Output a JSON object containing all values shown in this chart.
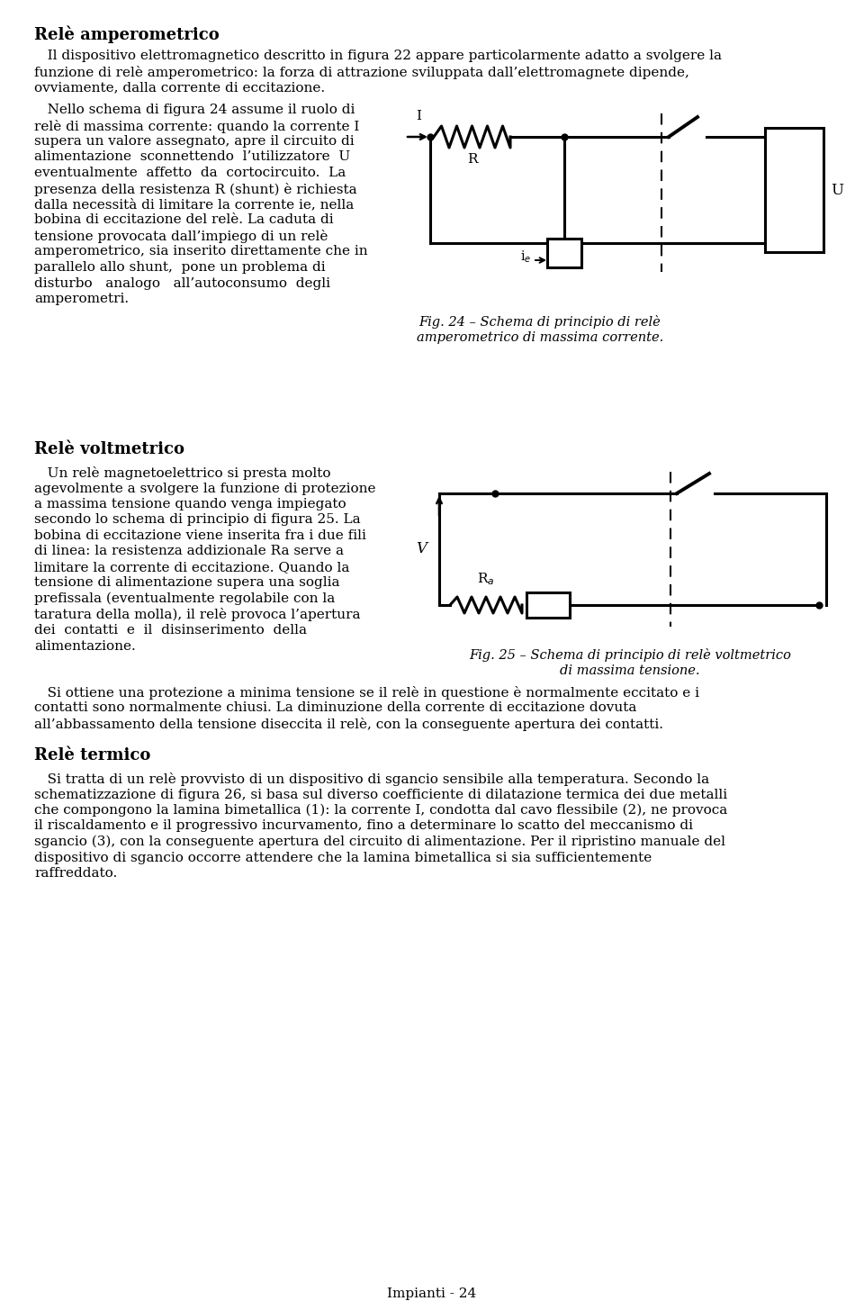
{
  "title_amp": "Relè amperometrico",
  "para1": "   Il dispositivo elettromagnetico descritto in figura 22 appare particolarmente adatto a svolgere la\nfunzione di relè amperometrico: la forza di attrazione sviluppata dall’elettromagnete dipende,\novviamente, dalla corrente di eccitazione.",
  "para2_left_lines": [
    "   Nello schema di figura 24 assume il ruolo di",
    "relè di massima corrente: quando la corrente I",
    "supera un valore assegnato, apre il circuito di",
    "alimentazione  sconnettendo  l’utilizzatore  U",
    "eventualmente  affetto  da  cortocircuito.  La",
    "presenza della resistenza R (shunt) è richiesta",
    "dalla necessità di limitare la corrente ie, nella",
    "bobina di eccitazione del relè. La caduta di",
    "tensione provocata dall’impiego di un relè",
    "amperometrico, sia inserito direttamente che in",
    "parallelo allo shunt,  pone un problema di",
    "disturbo   analogo   all’autoconsumo  degli",
    "amperometri."
  ],
  "fig24_caption_line1": "Fig. 24 – Schema di principio di relè",
  "fig24_caption_line2": "amperometrico di massima corrente.",
  "title_volt": "Relè voltmetrico",
  "para_volt_lines": [
    "   Un relè magnetoelettrico si presta molto",
    "agevolmente a svolgere la funzione di protezione",
    "a massima tensione quando venga impiegato",
    "secondo lo schema di principio di figura 25. La",
    "bobina di eccitazione viene inserita fra i due fili",
    "di linea: la resistenza addizionale Ra serve a",
    "limitare la corrente di eccitazione. Quando la",
    "tensione di alimentazione supera una soglia",
    "prefissala (eventualmente regolabile con la",
    "taratura della molla), il relè provoca l’apertura",
    "dei  contatti  e  il  disinserimento  della",
    "alimentazione."
  ],
  "fig25_caption_line1": "Fig. 25 – Schema di principio di relè voltmetrico",
  "fig25_caption_line2": "di massima tensione.",
  "para_min_lines": [
    "   Si ottiene una protezione a minima tensione se il relè in questione è normalmente eccitato e i",
    "contatti sono normalmente chiusi. La diminuzione della corrente di eccitazione dovuta",
    "all’abbassamento della tensione diseccita il relè, con la conseguente apertura dei contatti."
  ],
  "title_term": "Relè termico",
  "para_term_lines": [
    "   Si tratta di un relè provvisto di un dispositivo di sgancio sensibile alla temperatura. Secondo la",
    "schematizzazione di figura 26, si basa sul diverso coefficiente di dilatazione termica dei due metalli",
    "che compongono la lamina bimetallica (1): la corrente I, condotta dal cavo flessibile (2), ne provoca",
    "il riscaldamento e il progressivo incurvamento, fino a determinare lo scatto del meccanismo di",
    "sgancio (3), con la conseguente apertura del circuito di alimentazione. Per il ripristino manuale del",
    "dispositivo di sgancio occorre attendere che la lamina bimetallica si sia sufficientemente",
    "raffreddato."
  ],
  "footer": "Impianti - 24"
}
